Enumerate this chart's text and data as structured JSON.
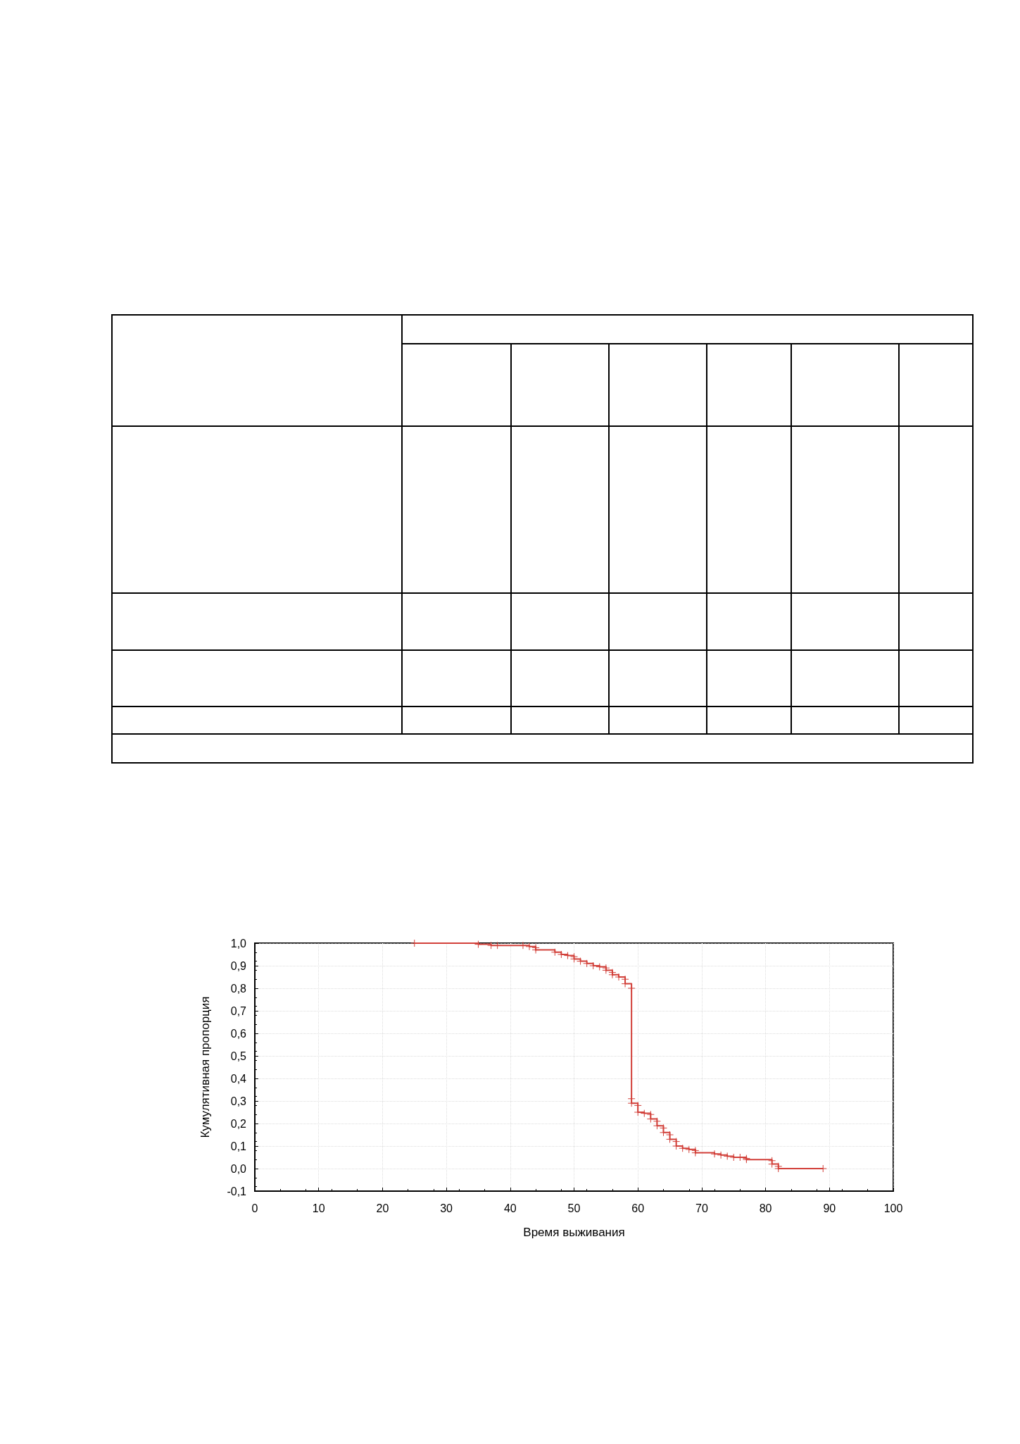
{
  "chart_data": {
    "type": "step",
    "xlabel": "Время выживания",
    "ylabel": "Кумулятивная пропорция",
    "xlim": [
      0,
      100
    ],
    "xticks": [
      0,
      10,
      20,
      30,
      40,
      50,
      60,
      70,
      80,
      90,
      100
    ],
    "ylim": [
      -0.1,
      1.0
    ],
    "yticks": [
      {
        "value": -0.1,
        "label": "-0,1"
      },
      {
        "value": 0,
        "label": "0,0"
      },
      {
        "value": 0.1,
        "label": "0,1"
      },
      {
        "value": 0.2,
        "label": "0,2"
      },
      {
        "value": 0.3,
        "label": "0,3"
      },
      {
        "value": 0.4,
        "label": "0,4"
      },
      {
        "value": 0.5,
        "label": "0,5"
      },
      {
        "value": 0.6,
        "label": "0,6"
      },
      {
        "value": 0.7,
        "label": "0,7"
      },
      {
        "value": 0.8,
        "label": "0,8"
      },
      {
        "value": 0.9,
        "label": "0,9"
      },
      {
        "value": 1.0,
        "label": "1,0"
      }
    ],
    "grid": true,
    "marker": "cross",
    "line_style": "solid",
    "series": [
      {
        "color": "#d2403a",
        "x": [
          25,
          35,
          37,
          38,
          42,
          43,
          44,
          44,
          47,
          48,
          49,
          50,
          50,
          51,
          52,
          53,
          54,
          55,
          55,
          56,
          56,
          57,
          58,
          58,
          59,
          59,
          59,
          60,
          60,
          61,
          62,
          62,
          63,
          63,
          64,
          64,
          65,
          65,
          66,
          66,
          67,
          68,
          69,
          69,
          72,
          73,
          74,
          75,
          76,
          77,
          77,
          81,
          81,
          82,
          82,
          89
        ],
        "values": [
          1.0,
          0.995,
          0.99,
          0.99,
          0.99,
          0.985,
          0.98,
          0.97,
          0.96,
          0.95,
          0.945,
          0.94,
          0.93,
          0.92,
          0.91,
          0.9,
          0.895,
          0.89,
          0.88,
          0.87,
          0.86,
          0.85,
          0.84,
          0.82,
          0.8,
          0.31,
          0.29,
          0.28,
          0.25,
          0.245,
          0.24,
          0.22,
          0.21,
          0.19,
          0.18,
          0.16,
          0.15,
          0.13,
          0.12,
          0.1,
          0.09,
          0.085,
          0.08,
          0.07,
          0.065,
          0.06,
          0.055,
          0.05,
          0.05,
          0.045,
          0.04,
          0.035,
          0.02,
          0.01,
          0.0,
          0.0
        ]
      }
    ]
  }
}
